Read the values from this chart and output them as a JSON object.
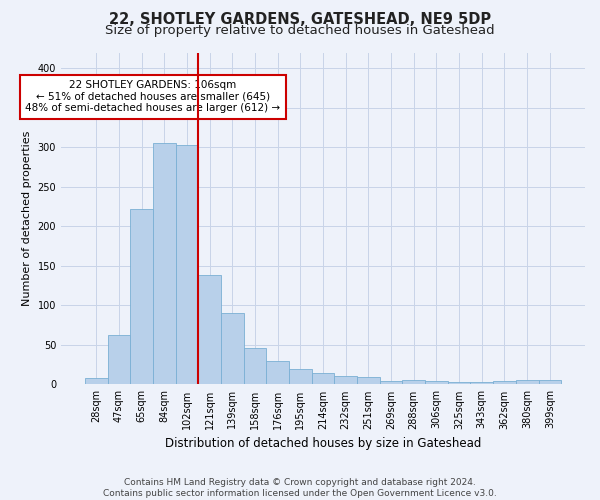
{
  "title": "22, SHOTLEY GARDENS, GATESHEAD, NE9 5DP",
  "subtitle": "Size of property relative to detached houses in Gateshead",
  "xlabel": "Distribution of detached houses by size in Gateshead",
  "ylabel": "Number of detached properties",
  "categories": [
    "28sqm",
    "47sqm",
    "65sqm",
    "84sqm",
    "102sqm",
    "121sqm",
    "139sqm",
    "158sqm",
    "176sqm",
    "195sqm",
    "214sqm",
    "232sqm",
    "251sqm",
    "269sqm",
    "288sqm",
    "306sqm",
    "325sqm",
    "343sqm",
    "362sqm",
    "380sqm",
    "399sqm"
  ],
  "values": [
    8,
    63,
    222,
    306,
    303,
    139,
    90,
    46,
    30,
    19,
    14,
    11,
    10,
    4,
    5,
    4,
    3,
    3,
    4,
    5,
    5
  ],
  "bar_color": "#b8d0ea",
  "bar_edge_color": "#7aafd4",
  "vline_x": 4.5,
  "vline_color": "#cc0000",
  "annotation_text": "22 SHOTLEY GARDENS: 106sqm\n← 51% of detached houses are smaller (645)\n48% of semi-detached houses are larger (612) →",
  "annotation_box_color": "white",
  "annotation_box_edge": "#cc0000",
  "grid_color": "#c8d4e8",
  "background_color": "#eef2fa",
  "footer_line1": "Contains HM Land Registry data © Crown copyright and database right 2024.",
  "footer_line2": "Contains public sector information licensed under the Open Government Licence v3.0.",
  "ylim": [
    0,
    420
  ],
  "yticks": [
    0,
    50,
    100,
    150,
    200,
    250,
    300,
    350,
    400
  ],
  "title_fontsize": 10.5,
  "subtitle_fontsize": 9.5,
  "xlabel_fontsize": 8.5,
  "ylabel_fontsize": 8,
  "tick_fontsize": 7,
  "footer_fontsize": 6.5,
  "annotation_fontsize": 7.5
}
